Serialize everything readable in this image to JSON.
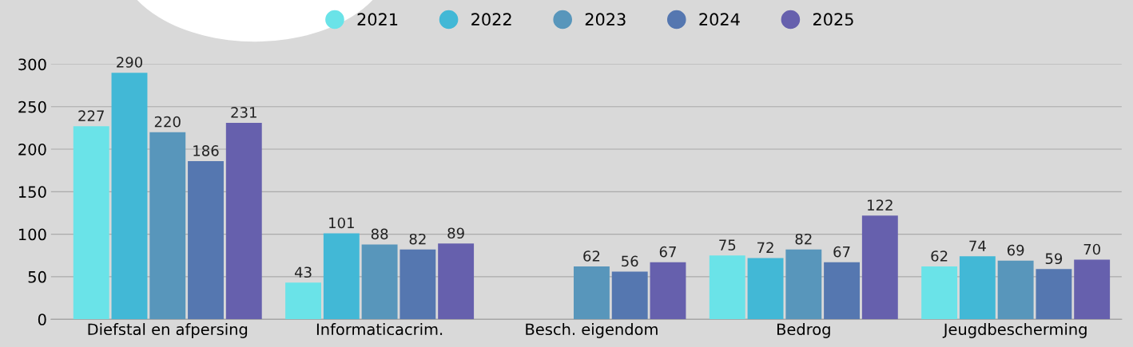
{
  "chart_data": {
    "type": "bar",
    "categories": [
      "Diefstal en afpersing",
      "Informaticacrim.",
      "Besch. eigendom",
      "Bedrog",
      "Jeugdbescherming"
    ],
    "series": [
      {
        "name": "2021",
        "color": "#6ae3e8",
        "values": [
          227,
          43,
          null,
          75,
          62
        ]
      },
      {
        "name": "2022",
        "color": "#42b8d6",
        "values": [
          290,
          101,
          null,
          72,
          74
        ]
      },
      {
        "name": "2023",
        "color": "#5896bb",
        "values": [
          220,
          88,
          62,
          82,
          69
        ]
      },
      {
        "name": "2024",
        "color": "#5577b0",
        "values": [
          186,
          82,
          56,
          67,
          59
        ]
      },
      {
        "name": "2025",
        "color": "#6660ad",
        "values": [
          231,
          89,
          67,
          122,
          70
        ]
      }
    ],
    "ylim": [
      0,
      300
    ],
    "yticks": [
      0,
      50,
      100,
      150,
      200,
      250,
      300
    ],
    "grid": "y",
    "legend": "top",
    "data_labels": true
  }
}
